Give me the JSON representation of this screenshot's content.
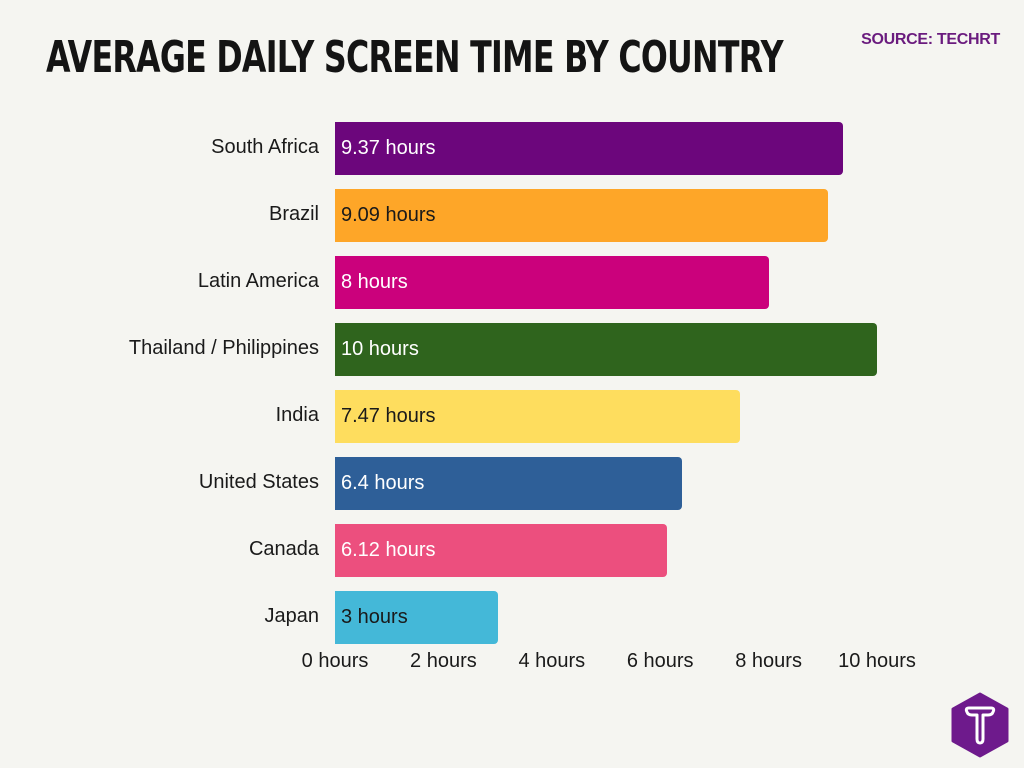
{
  "header": {
    "title": "AVERAGE DAILY SCREEN TIME BY COUNTRY",
    "source": "SOURCE: TECHRT"
  },
  "logo": {
    "icon": "techrt-logo-icon",
    "color": "#6e1a8c"
  },
  "chart_data": {
    "type": "bar",
    "orientation": "horizontal",
    "title": "AVERAGE DAILY SCREEN TIME BY COUNTRY",
    "subtitle": "SOURCE: TECHRT",
    "xlabel": "",
    "ylabel": "",
    "xlim": [
      0,
      10
    ],
    "grid": false,
    "legend": null,
    "categories": [
      "South Africa",
      "Brazil",
      "Latin America",
      "Thailand / Philippines",
      "India",
      "United States",
      "Canada",
      "Japan"
    ],
    "values": [
      9.37,
      9.09,
      8,
      10,
      7.47,
      6.4,
      6.12,
      3
    ],
    "data_labels": [
      "9.37 hours",
      "9.09 hours",
      "8 hours",
      "10 hours",
      "7.47 hours",
      "6.4 hours",
      "6.12 hours",
      "3 hours"
    ],
    "colors": [
      "#6c067c",
      "#fea628",
      "#cb017c",
      "#2f641d",
      "#fedd5e",
      "#2e5f98",
      "#ec4f7e",
      "#44b8d8"
    ],
    "label_colors": [
      "#ffffff",
      "#1a1a1a",
      "#ffffff",
      "#ffffff",
      "#1a1a1a",
      "#ffffff",
      "#ffffff",
      "#1a1a1a"
    ],
    "x_ticks": [
      0,
      2,
      4,
      6,
      8,
      10
    ],
    "x_tick_labels": [
      "0 hours",
      "2 hours",
      "4 hours",
      "6 hours",
      "8 hours",
      "10 hours"
    ]
  }
}
